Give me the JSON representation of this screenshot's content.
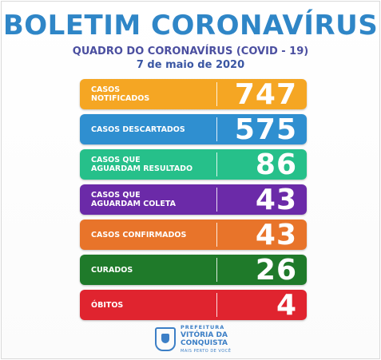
{
  "header": {
    "title": "BOLETIM CORONAVÍRUS",
    "subtitle": "QUADRO DO CORONAVÍRUS (COVID - 19)",
    "date": "7 de maio de 2020"
  },
  "stats": [
    {
      "label": "CASOS\nNOTIFICADOS",
      "value": "747",
      "color": "#f5a623"
    },
    {
      "label": "CASOS DESCARTADOS",
      "value": "575",
      "color": "#2f8fd0"
    },
    {
      "label": "CASOS QUE\nAGUARDAM RESULTADO",
      "value": "86",
      "color": "#26c08a"
    },
    {
      "label": "CASOS QUE\nAGUARDAM COLETA",
      "value": "43",
      "color": "#6b2aa8"
    },
    {
      "label": "CASOS CONFIRMADOS",
      "value": "43",
      "color": "#e8742a"
    },
    {
      "label": "CURADOS",
      "value": "26",
      "color": "#1f7a2a"
    },
    {
      "label": "ÓBITOS",
      "value": "4",
      "color": "#e0242f"
    }
  ],
  "footer": {
    "line1": "PREFEITURA",
    "line2": "VITÓRIA DA",
    "line3": "CONQUISTA",
    "line4": "MAIS PERTO DE VOCÊ"
  }
}
